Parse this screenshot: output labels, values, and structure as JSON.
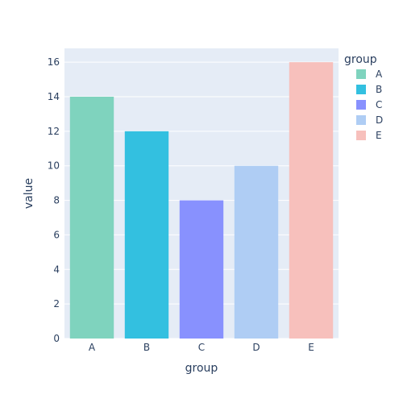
{
  "chart_data": {
    "type": "bar",
    "categories": [
      "A",
      "B",
      "C",
      "D",
      "E"
    ],
    "values": [
      14,
      12,
      8,
      10,
      16
    ],
    "colors": [
      "#7fd3be",
      "#33c0e0",
      "#8891fe",
      "#afcdf4",
      "#f7c0bc"
    ],
    "xlabel": "group",
    "ylabel": "value",
    "ylim": [
      0,
      16.8
    ],
    "yticks": [
      0,
      2,
      4,
      6,
      8,
      10,
      12,
      14,
      16
    ],
    "grid": true,
    "legend": {
      "title": "group",
      "position": "top-right",
      "entries": [
        "A",
        "B",
        "C",
        "D",
        "E"
      ]
    },
    "plot_background": "#e5ecf6"
  }
}
